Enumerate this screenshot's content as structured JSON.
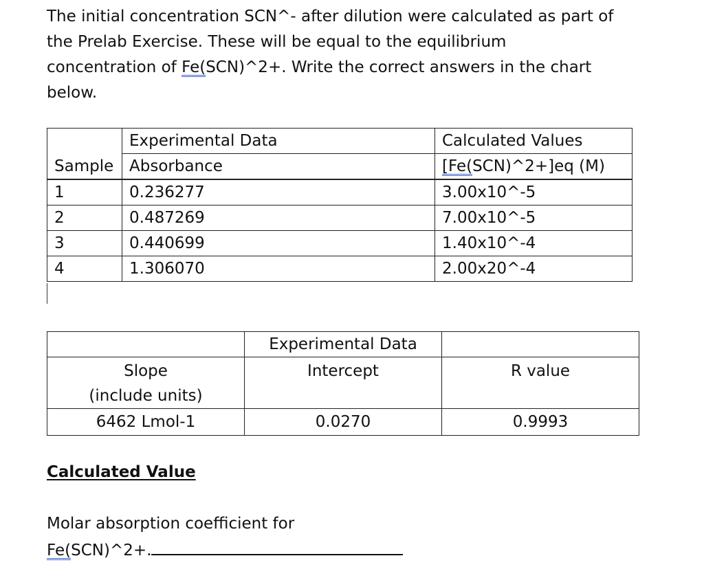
{
  "intro": {
    "line1": "The initial concentration SCN^- after dilution were calculated as part of",
    "line2": "the Prelab Exercise. These will be equal to the equilibrium",
    "line3_pre": "concentration of ",
    "line3_link": "Fe(",
    "line3_post": "SCN)^2+. Write the correct answers in the chart",
    "line4": "below."
  },
  "table1": {
    "header_experimental": "Experimental Data",
    "header_calculated": "Calculated Values",
    "col_sample": "Sample",
    "col_absorbance": "Absorbance",
    "col_conc_link": "[Fe(",
    "col_conc_post": "SCN)^2+]eq (M)",
    "rows": [
      {
        "sample": "1",
        "absorbance": "0.236277",
        "conc": "3.00x10^-5"
      },
      {
        "sample": "2",
        "absorbance": "0.487269",
        "conc": "7.00x10^-5"
      },
      {
        "sample": "3",
        "absorbance": "0.440699",
        "conc": "1.40x10^-4"
      },
      {
        "sample": "4",
        "absorbance": "1.306070",
        "conc": "2.00x20^-4"
      }
    ]
  },
  "table2": {
    "header_experimental": "Experimental Data",
    "slope_label_1": "Slope",
    "slope_label_2": "(include units)",
    "intercept_label": "Intercept",
    "r_label": "R value",
    "slope_value": "6462 Lmol-1",
    "intercept_value": "0.0270",
    "r_value": "0.9993"
  },
  "calculated_value": {
    "heading": "Calculated Value",
    "molar_line1": "Molar absorption coefficient for",
    "molar_line2_link": "Fe(",
    "molar_line2_post": "SCN)^2+."
  }
}
